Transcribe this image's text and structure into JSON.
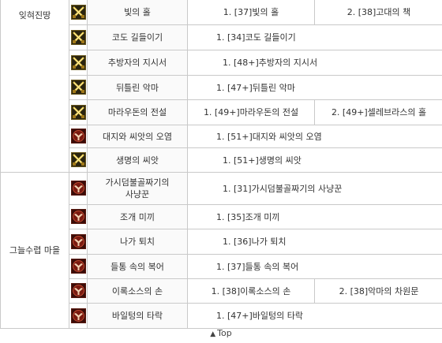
{
  "regions": [
    {
      "name": "잊혀진땅",
      "rows": [
        {
          "icon": "crossed-swords-icon",
          "name": "빛의 홀",
          "q1": "1. [37]빛의 홀",
          "q2": "2. [38]고대의 책"
        },
        {
          "icon": "crossed-swords-icon",
          "name": "코도 길들이기",
          "q1": "1. [34]코도 길들이기",
          "q2": ""
        },
        {
          "icon": "crossed-swords-icon",
          "name": "추방자의 지시서",
          "q1": "1. [48+]추방자의 지시서",
          "q2": ""
        },
        {
          "icon": "crossed-swords-icon",
          "name": "뒤틀린 악마",
          "q1": "1. [47+]뒤틀린 악마",
          "q2": ""
        },
        {
          "icon": "crossed-swords-icon",
          "name": "마라우돈의 전설",
          "q1": "1. [49+]마라우돈의 전설",
          "q2": "2. [49+]셀레브라스의 홀"
        },
        {
          "icon": "horde-emblem-icon",
          "name": "대지와 씨앗의 오염",
          "q1": "1. [51+]대지와 씨앗의 오염",
          "q2": ""
        },
        {
          "icon": "crossed-swords-icon",
          "name": "생명의 씨앗",
          "q1": "1. [51+]생명의 씨앗",
          "q2": ""
        }
      ]
    },
    {
      "name": "그늘수렵 마을",
      "rows": [
        {
          "icon": "horde-emblem-icon",
          "name": "가시덤불골짜기의 사냥꾼",
          "q1": "1. [31]가시덤불골짜기의 사냥꾼",
          "q2": ""
        },
        {
          "icon": "horde-emblem-icon",
          "name": "조개 미끼",
          "q1": "1. [35]조개 미끼",
          "q2": ""
        },
        {
          "icon": "horde-emblem-icon",
          "name": "나가 퇴치",
          "q1": "1. [36]나가 퇴치",
          "q2": ""
        },
        {
          "icon": "horde-emblem-icon",
          "name": "들통 속의 복어",
          "q1": "1. [37]들통 속의 복어",
          "q2": ""
        },
        {
          "icon": "horde-emblem-icon",
          "name": "이록소스의 손",
          "q1": "1. [38]이록소스의 손",
          "q2": "2. [38]악마의 차원문"
        },
        {
          "icon": "horde-emblem-icon",
          "name": "바일텅의 타락",
          "q1": "1. [47+]바일텅의 타락",
          "q2": ""
        }
      ]
    }
  ],
  "footer": {
    "arrow": "▲",
    "label": "Top"
  },
  "colors": {
    "border": "#c9c9c9",
    "sword_gold": "#c8a020",
    "horde_red": "#8a1a10"
  }
}
